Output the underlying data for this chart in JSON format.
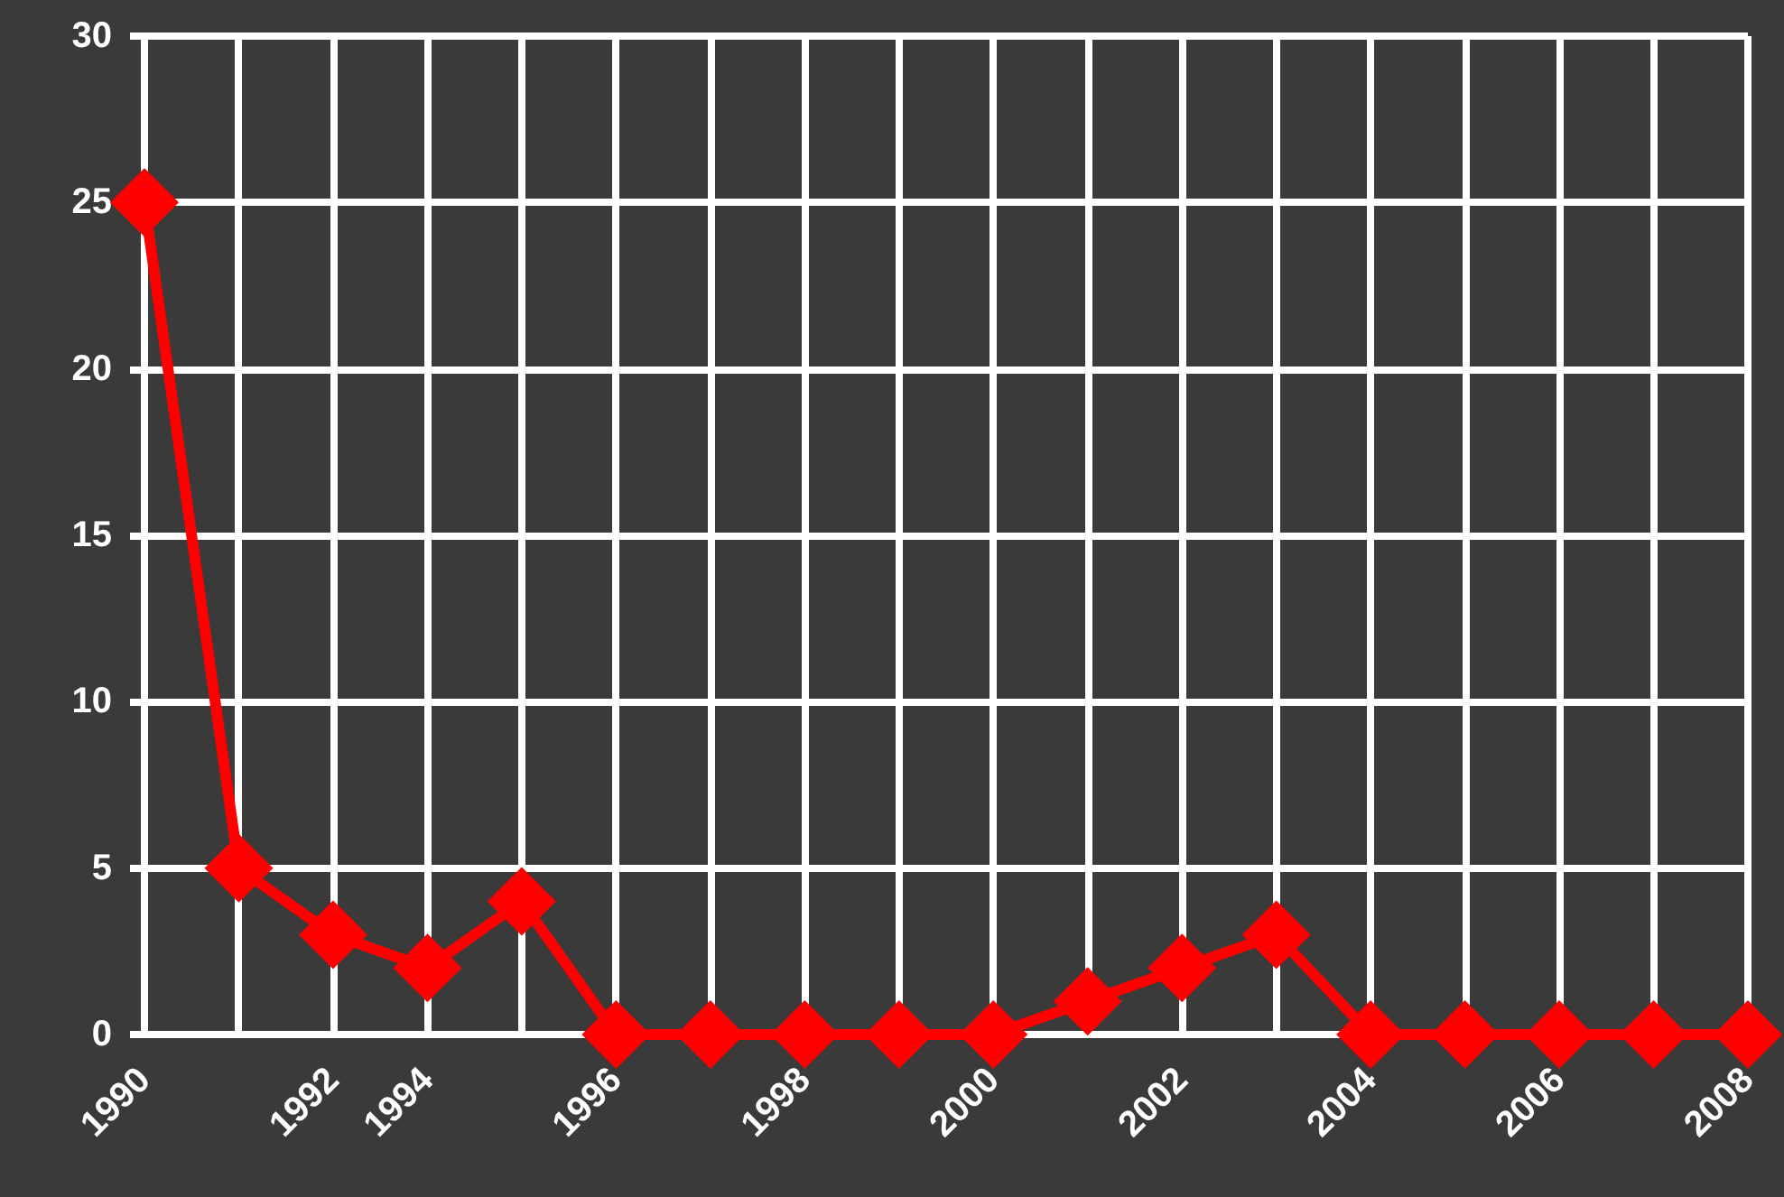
{
  "chart_data": {
    "type": "line",
    "categories": [
      "1990",
      null,
      "1992",
      "1994",
      null,
      "1996",
      null,
      "1998",
      null,
      "2000",
      null,
      "2002",
      null,
      "2004",
      null,
      "2006",
      null,
      "2008"
    ],
    "series": [
      {
        "color": "#ff0000",
        "values": [
          25,
          5,
          3,
          2,
          4,
          0,
          0,
          0,
          0,
          0,
          1,
          2,
          3,
          0,
          0,
          0,
          0,
          0
        ]
      }
    ],
    "ylim": [
      0,
      30
    ],
    "yticks": [
      0,
      5,
      10,
      15,
      20,
      25,
      30
    ],
    "grid": true,
    "marker": "diamond",
    "line_style": "solid"
  }
}
